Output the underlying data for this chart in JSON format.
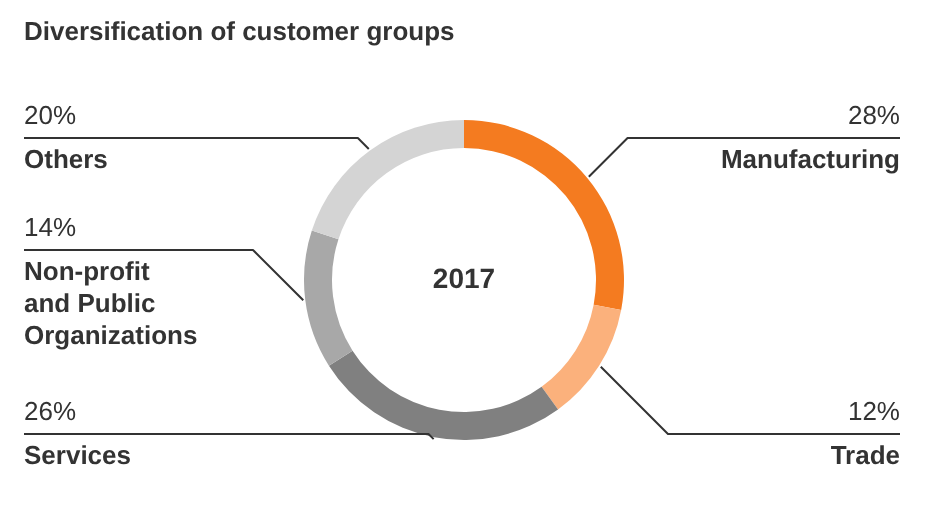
{
  "chart_data": {
    "type": "donut",
    "title": "Diversification of customer groups",
    "categories": [
      "Manufacturing",
      "Trade",
      "Services",
      "Non-profit\nand Public\nOrganizations",
      "Others"
    ],
    "values": [
      28,
      12,
      26,
      14,
      20
    ],
    "value_labels": [
      "28%",
      "12%",
      "26%",
      "14%",
      "20%"
    ],
    "colors": [
      "#f47b20",
      "#fbb17c",
      "#808080",
      "#a8a8a8",
      "#d4d4d4"
    ],
    "annotations": [
      "2017"
    ]
  }
}
